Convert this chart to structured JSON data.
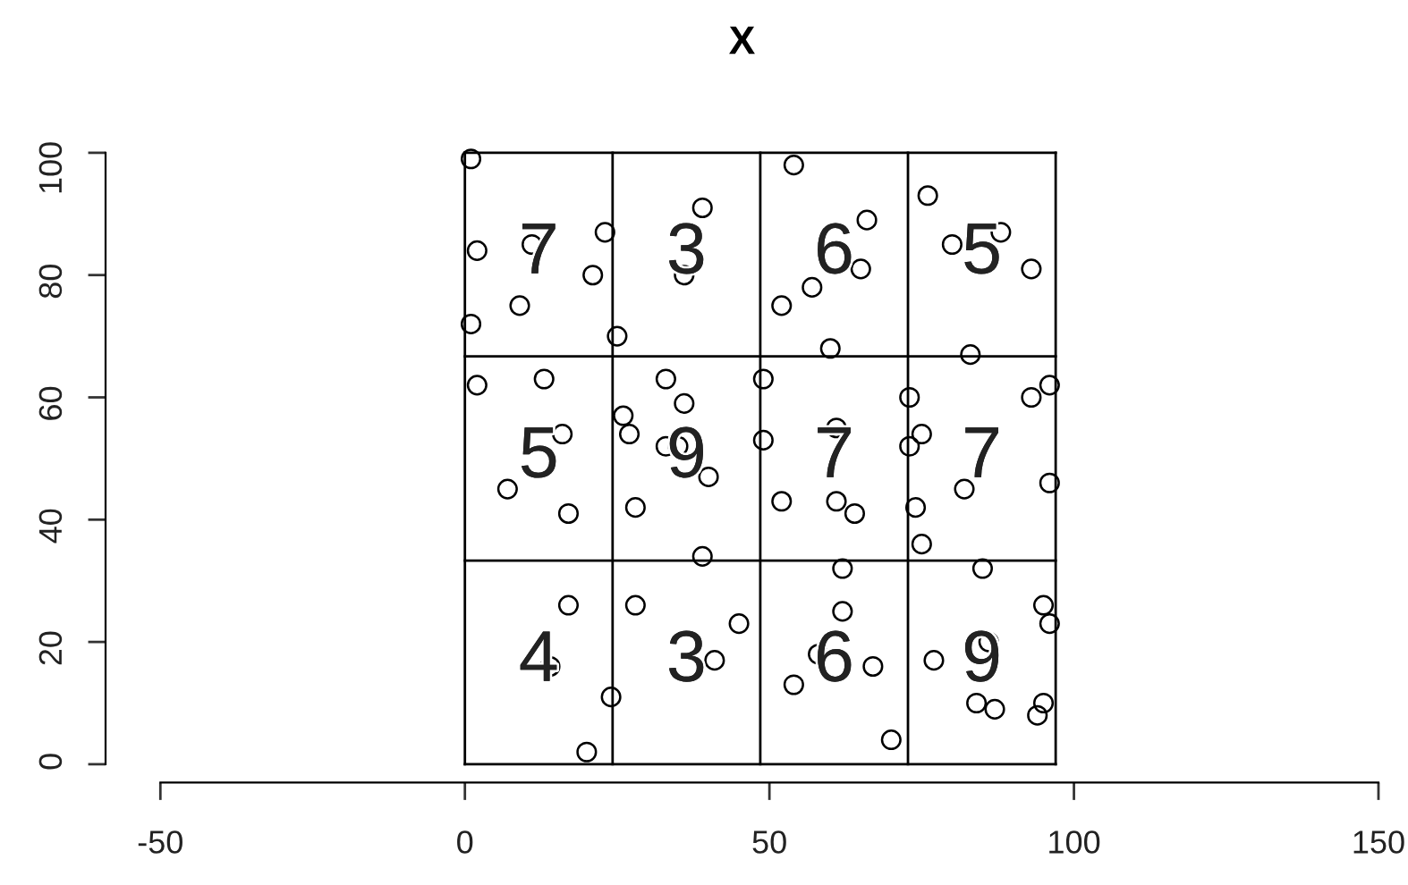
{
  "chart_data": {
    "type": "scatter",
    "title": "X",
    "marker": "circle",
    "xlim": [
      -50,
      150
    ],
    "ylim": [
      0,
      100
    ],
    "xticks": [
      -50,
      0,
      50,
      100,
      150
    ],
    "yticks": [
      0,
      20,
      40,
      60,
      80,
      100
    ],
    "grid": false,
    "series": [
      {
        "color": "#000000",
        "x": [
          1,
          2,
          11,
          23,
          21,
          9,
          1,
          25,
          39,
          36,
          54,
          66,
          65,
          57,
          52,
          60,
          76,
          88,
          80,
          93,
          83,
          2,
          13,
          16,
          7,
          17,
          33,
          36,
          26,
          27,
          33,
          40,
          28,
          39,
          35,
          49,
          49,
          61,
          52,
          61,
          64,
          73,
          75,
          73,
          93,
          96,
          82,
          74,
          75,
          96,
          17,
          14,
          20,
          24,
          28,
          45,
          41,
          62,
          62,
          58,
          67,
          54,
          70,
          85,
          95,
          96,
          77,
          86,
          84,
          87,
          95,
          94
        ],
        "values": [
          99,
          84,
          85,
          87,
          80,
          75,
          72,
          70,
          91,
          80,
          98,
          89,
          81,
          78,
          75,
          68,
          93,
          87,
          85,
          81,
          67,
          62,
          63,
          54,
          45,
          41,
          63,
          59,
          57,
          54,
          52,
          47,
          42,
          34,
          52,
          63,
          53,
          55,
          43,
          43,
          41,
          60,
          54,
          52,
          60,
          62,
          45,
          42,
          36,
          46,
          26,
          16,
          2,
          11,
          26,
          23,
          17,
          32,
          25,
          18,
          16,
          13,
          4,
          32,
          26,
          23,
          17,
          20,
          10,
          9,
          10,
          8
        ]
      }
    ],
    "ref_lines": [
      {
        "axis": "x",
        "value": 0
      },
      {
        "axis": "x",
        "value": 24.25
      },
      {
        "axis": "x",
        "value": 48.5
      },
      {
        "axis": "x",
        "value": 72.75
      },
      {
        "axis": "x",
        "value": 97
      },
      {
        "axis": "y",
        "value": 0
      },
      {
        "axis": "y",
        "value": 33.3
      },
      {
        "axis": "y",
        "value": 66.7
      },
      {
        "axis": "y",
        "value": 100
      }
    ],
    "annotations": [
      "7",
      "3",
      "6",
      "5",
      "5",
      "9",
      "7",
      "7",
      "4",
      "3",
      "6",
      "9"
    ]
  }
}
